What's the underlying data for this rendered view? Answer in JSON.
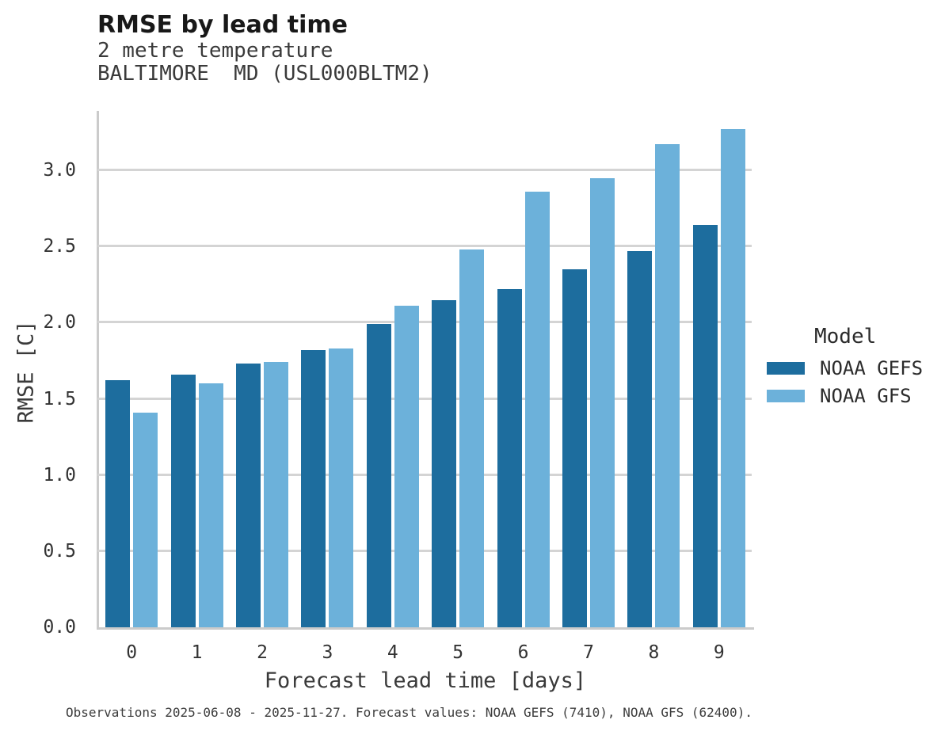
{
  "header": {
    "title": "RMSE by lead time",
    "subtitle_line1": "2 metre temperature",
    "subtitle_line2": "BALTIMORE  MD (USL000BLTM2)"
  },
  "chart_data": {
    "type": "bar",
    "title": "RMSE by lead time",
    "subtitle": [
      "2 metre temperature",
      "BALTIMORE  MD (USL000BLTM2)"
    ],
    "categories": [
      "0",
      "1",
      "2",
      "3",
      "4",
      "5",
      "6",
      "7",
      "8",
      "9"
    ],
    "series": [
      {
        "name": "NOAA GEFS",
        "color": "#1d6d9e",
        "values": [
          1.62,
          1.66,
          1.73,
          1.82,
          1.99,
          2.15,
          2.22,
          2.35,
          2.47,
          2.64
        ]
      },
      {
        "name": "NOAA GFS",
        "color": "#6cb1da",
        "values": [
          1.41,
          1.6,
          1.74,
          1.83,
          2.11,
          2.48,
          2.86,
          2.95,
          3.17,
          3.27
        ]
      }
    ],
    "xlabel": "Forecast lead time [days]",
    "ylabel": "RMSE [C]",
    "ylim": [
      0.0,
      3.39
    ],
    "y_ticks": [
      0.0,
      0.5,
      1.0,
      1.5,
      2.0,
      2.5,
      3.0
    ],
    "grid": "horizontal",
    "legend_title": "Model",
    "legend_position": "right"
  },
  "legend": {
    "title": "Model",
    "items": [
      {
        "label": "NOAA GEFS",
        "color": "#1d6d9e"
      },
      {
        "label": "NOAA GFS",
        "color": "#6cb1da"
      }
    ]
  },
  "footer": {
    "text": "Observations 2025-06-08 - 2025-11-27. Forecast values: NOAA GEFS (7410), NOAA GFS (62400)."
  },
  "colors": {
    "bar_dark": "#1d6d9e",
    "bar_light": "#6cb1da",
    "gridline": "#d4d4d4",
    "spine": "#cbcbcb",
    "title_text": "#181818",
    "axis_text": "#3a3a3a"
  }
}
